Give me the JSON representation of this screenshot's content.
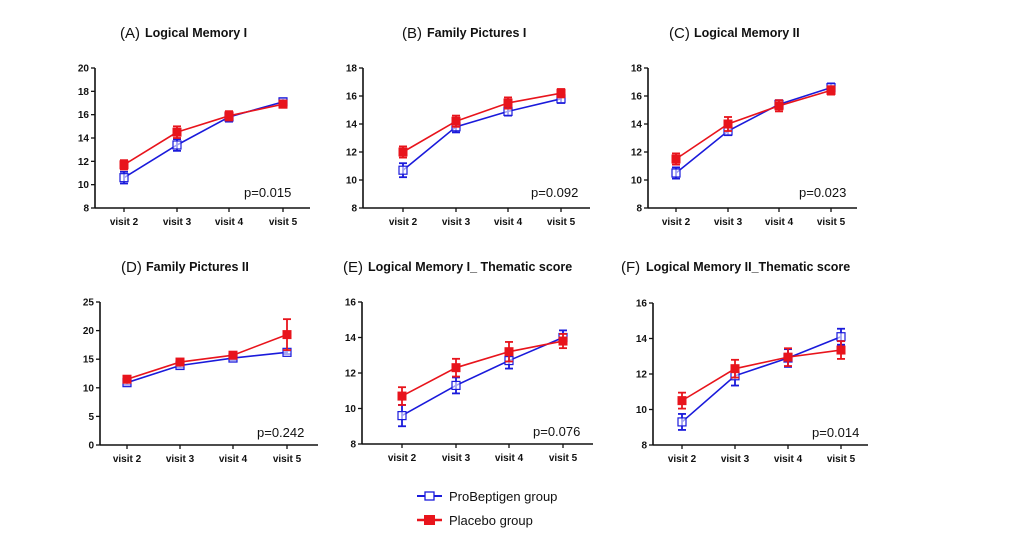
{
  "figure": {
    "legend": [
      {
        "name": "ProBeptigen group",
        "color": "#1a1adb",
        "marker": "open-square"
      },
      {
        "name": "Placebo group",
        "color": "#e8141c",
        "marker": "filled-square"
      }
    ]
  },
  "chart_data": [
    {
      "type": "line",
      "letter": "(A)",
      "title": "Logical Memory I",
      "categories": [
        "visit 2",
        "visit 3",
        "visit 4",
        "visit 5"
      ],
      "ylim": [
        8,
        20
      ],
      "yticks": [
        8,
        10,
        12,
        14,
        16,
        18,
        20
      ],
      "p_value": "p=0.015",
      "series": [
        {
          "name": "ProBeptigen group",
          "values": [
            10.6,
            13.4,
            15.8,
            17.1
          ],
          "errors": [
            0.5,
            0.5,
            0.4,
            0.3
          ]
        },
        {
          "name": "Placebo group",
          "values": [
            11.7,
            14.5,
            15.9,
            16.9
          ],
          "errors": [
            0.4,
            0.5,
            0.4,
            0.3
          ]
        }
      ]
    },
    {
      "type": "line",
      "letter": "(B)",
      "title": "Family Pictures I",
      "categories": [
        "visit 2",
        "visit 3",
        "visit 4",
        "visit 5"
      ],
      "ylim": [
        8,
        18
      ],
      "yticks": [
        8,
        10,
        12,
        14,
        16,
        18
      ],
      "p_value": "p=0.092",
      "series": [
        {
          "name": "ProBeptigen group",
          "values": [
            10.7,
            13.8,
            14.9,
            15.8
          ],
          "errors": [
            0.5,
            0.4,
            0.3,
            0.3
          ]
        },
        {
          "name": "Placebo group",
          "values": [
            12.0,
            14.2,
            15.5,
            16.2
          ],
          "errors": [
            0.4,
            0.4,
            0.4,
            0.3
          ]
        }
      ]
    },
    {
      "type": "line",
      "letter": "(C)",
      "title": "Logical Memory II",
      "categories": [
        "visit 2",
        "visit 3",
        "visit 4",
        "visit 5"
      ],
      "ylim": [
        8,
        18
      ],
      "yticks": [
        8,
        10,
        12,
        14,
        16,
        18
      ],
      "p_value": "p=0.023",
      "series": [
        {
          "name": "ProBeptigen group",
          "values": [
            10.5,
            13.5,
            15.4,
            16.6
          ],
          "errors": [
            0.4,
            0.3,
            0.3,
            0.3
          ]
        },
        {
          "name": "Placebo group",
          "values": [
            11.5,
            14.0,
            15.3,
            16.4
          ],
          "errors": [
            0.4,
            0.5,
            0.4,
            0.3
          ]
        }
      ]
    },
    {
      "type": "line",
      "letter": "(D)",
      "title": "Family Pictures II",
      "categories": [
        "visit 2",
        "visit 3",
        "visit 4",
        "visit 5"
      ],
      "ylim": [
        0,
        25
      ],
      "yticks": [
        0,
        5,
        10,
        15,
        20,
        25
      ],
      "p_value": "p=0.242",
      "series": [
        {
          "name": "ProBeptigen group",
          "values": [
            10.9,
            13.9,
            15.2,
            16.2
          ],
          "errors": [
            0.4,
            0.4,
            0.4,
            0.3
          ]
        },
        {
          "name": "Placebo group",
          "values": [
            11.5,
            14.5,
            15.7,
            19.3
          ],
          "errors": [
            0.4,
            0.5,
            0.4,
            2.7
          ]
        }
      ]
    },
    {
      "type": "line",
      "letter": "(E)",
      "title": "Logical Memory I_ Thematic score",
      "categories": [
        "visit 2",
        "visit 3",
        "visit 4",
        "visit 5"
      ],
      "ylim": [
        8,
        16
      ],
      "yticks": [
        8,
        10,
        12,
        14,
        16
      ],
      "p_value": "p=0.076",
      "series": [
        {
          "name": "ProBeptigen group",
          "values": [
            9.6,
            11.3,
            12.7,
            14.0
          ],
          "errors": [
            0.6,
            0.45,
            0.45,
            0.4
          ]
        },
        {
          "name": "Placebo group",
          "values": [
            10.7,
            12.3,
            13.2,
            13.8
          ],
          "errors": [
            0.5,
            0.5,
            0.55,
            0.4
          ]
        }
      ]
    },
    {
      "type": "line",
      "letter": "(F)",
      "title": "Logical Memory II_Thematic score",
      "categories": [
        "visit 2",
        "visit 3",
        "visit 4",
        "visit 5"
      ],
      "ylim": [
        8,
        16
      ],
      "yticks": [
        8,
        10,
        12,
        14,
        16
      ],
      "p_value": "p=0.014",
      "series": [
        {
          "name": "ProBeptigen group",
          "values": [
            9.3,
            11.9,
            12.9,
            14.1
          ],
          "errors": [
            0.45,
            0.55,
            0.5,
            0.45
          ]
        },
        {
          "name": "Placebo group",
          "values": [
            10.5,
            12.3,
            12.95,
            13.35
          ],
          "errors": [
            0.45,
            0.5,
            0.5,
            0.5
          ]
        }
      ]
    }
  ]
}
